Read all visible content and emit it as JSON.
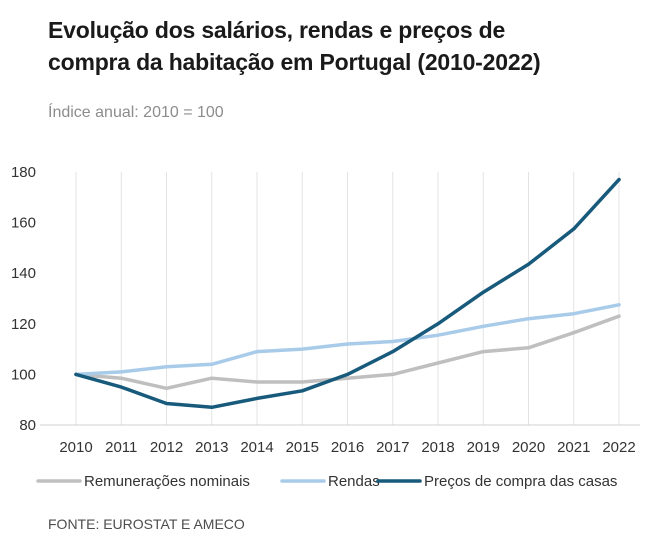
{
  "chart_data": {
    "type": "line",
    "title_lines": [
      "Evolução dos salários, rendas e preços de",
      "compra da habitação em Portugal (2010-2022)"
    ],
    "subtitle": "Índice anual: 2010 = 100",
    "source": "FONTE: EUROSTAT E AMECO",
    "x": [
      "2010",
      "2011",
      "2012",
      "2013",
      "2014",
      "2015",
      "2016",
      "2017",
      "2018",
      "2019",
      "2020",
      "2021",
      "2022"
    ],
    "yticks": [
      "80",
      "100",
      "120",
      "140",
      "160",
      "180"
    ],
    "ylim": [
      80,
      180
    ],
    "grid": "vertical",
    "legend_position": "bottom",
    "series": [
      {
        "name": "Remunerações nominais",
        "color": "#bfbfbf",
        "values": [
          100,
          98.5,
          94.5,
          98.5,
          97,
          97,
          98.5,
          100,
          104.5,
          109,
          110.5,
          116.5,
          123
        ]
      },
      {
        "name": "Rendas",
        "color": "#a9cbea",
        "values": [
          100,
          101,
          103,
          104,
          109,
          110,
          112,
          113,
          115.5,
          119,
          122,
          124,
          127.5
        ]
      },
      {
        "name": "Preços de compra das casas",
        "color": "#185a7c",
        "values": [
          100,
          95,
          88.5,
          87,
          90.5,
          93.5,
          100,
          109,
          120,
          132.5,
          143.5,
          157.5,
          177
        ]
      }
    ]
  }
}
